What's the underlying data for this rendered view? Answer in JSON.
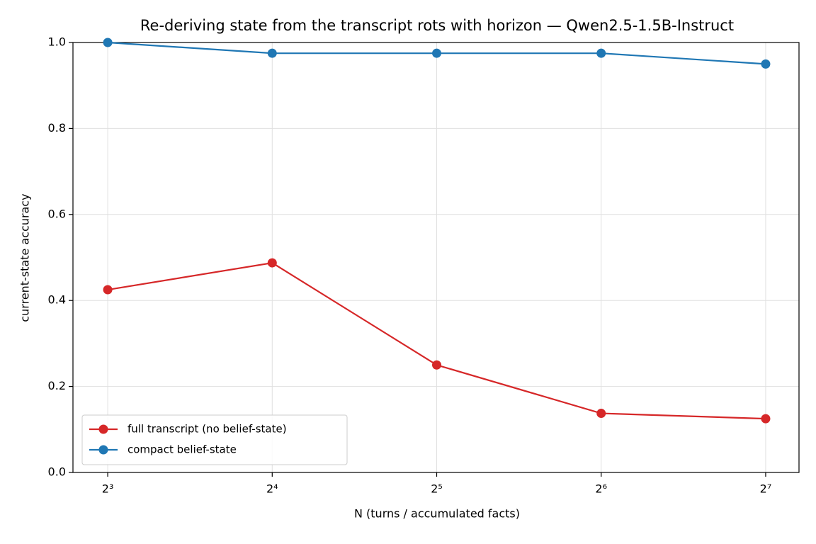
{
  "chart_data": {
    "type": "line",
    "title": "Re-deriving state from the transcript rots with horizon — Qwen2.5-1.5B-Instruct",
    "xlabel": "N  (turns / accumulated facts)",
    "ylabel": "current-state accuracy",
    "x": [
      8,
      16,
      32,
      64,
      128
    ],
    "xscale": "log2",
    "xlim": [
      6.91,
      147.3
    ],
    "xticks": [
      {
        "value": 8,
        "label": "2³"
      },
      {
        "value": 16,
        "label": "2⁴"
      },
      {
        "value": 32,
        "label": "2⁵"
      },
      {
        "value": 64,
        "label": "2⁶"
      },
      {
        "value": 128,
        "label": "2⁷"
      }
    ],
    "ylim": [
      0,
      1
    ],
    "yticks": [
      {
        "value": 0,
        "label": "0.0"
      },
      0.2,
      0.4,
      0.6,
      0.8,
      {
        "value": 1,
        "label": "1.0"
      }
    ],
    "grid": true,
    "legend": "lower left",
    "series": [
      {
        "name": "full transcript (no belief-state)",
        "color": "#d62728",
        "values": [
          0.425,
          0.4875,
          0.25,
          0.1375,
          0.125
        ]
      },
      {
        "name": "compact belief-state",
        "color": "#1f77b4",
        "values": [
          1.0,
          0.975,
          0.975,
          0.975,
          0.95
        ]
      }
    ]
  }
}
